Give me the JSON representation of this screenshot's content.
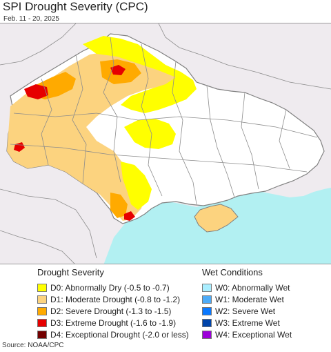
{
  "title": "SPI Drought Severity (CPC)",
  "subtitle": "Feb. 11 - 20, 2025",
  "source": "Source: NOAA/CPC",
  "map": {
    "land_color": "#ffffff",
    "outside_color": "#efebef",
    "sea_color": "#b2f0f2",
    "border_color": "#808080"
  },
  "legend_drought": {
    "title": "Drought Severity",
    "items": [
      {
        "label": "D0: Abnormally Dry (-0.5 to -0.7)",
        "color": "#ffff00"
      },
      {
        "label": "D1: Moderate Drought (-0.8 to -1.2)",
        "color": "#fcd37f"
      },
      {
        "label": "D2: Severe Drought (-1.3 to -1.5)",
        "color": "#ffaa00"
      },
      {
        "label": "D3: Extreme Drought (-1.6 to -1.9)",
        "color": "#e60000"
      },
      {
        "label": "D4: Exceptional Drought (-2.0 or less)",
        "color": "#730000"
      }
    ]
  },
  "legend_wet": {
    "title": "Wet Conditions",
    "items": [
      {
        "label": "W0: Abnormally Wet",
        "color": "#aaeeff"
      },
      {
        "label": "W1: Moderate Wet",
        "color": "#4dabf7"
      },
      {
        "label": "W2: Severe Wet",
        "color": "#0a78ff"
      },
      {
        "label": "W3: Extreme Wet",
        "color": "#0044aa"
      },
      {
        "label": "W4: Exceptional Wet",
        "color": "#9c00d9"
      }
    ]
  }
}
